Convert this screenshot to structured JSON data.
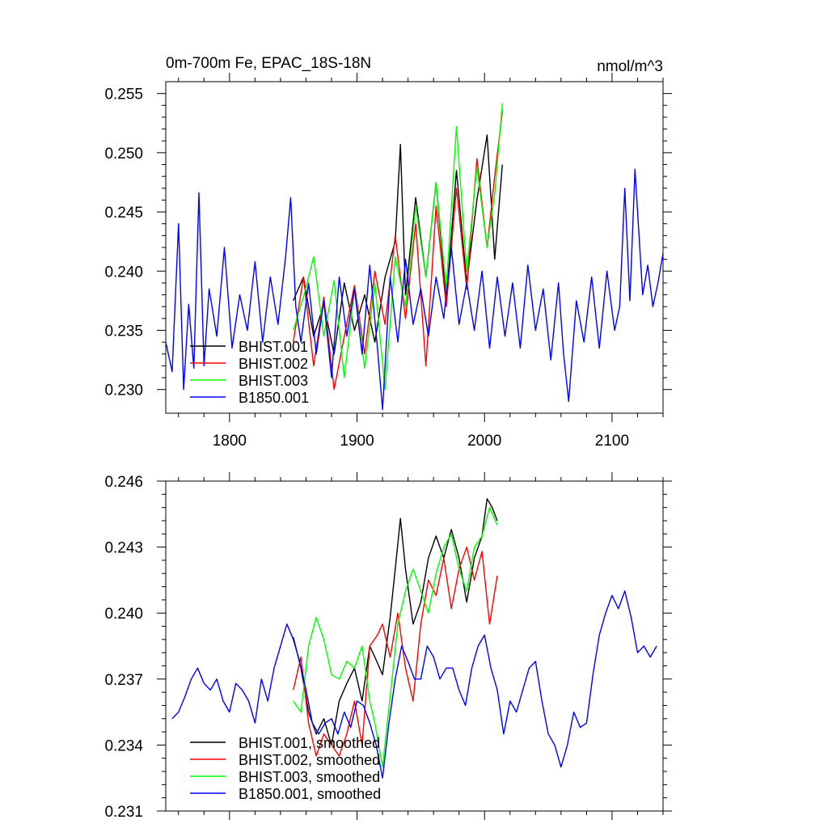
{
  "chart_data": [
    {
      "type": "line",
      "title": "0m-700m Fe, EPAC_18S-18N",
      "units": "nmol/m^3",
      "xlim": [
        1750,
        2140
      ],
      "ylim": [
        0.228,
        0.256
      ],
      "xticks": [
        1800,
        1900,
        2000,
        2100
      ],
      "xtick_labels": [
        "1800",
        "1900",
        "2000",
        "2100"
      ],
      "yticks": [
        0.23,
        0.235,
        0.24,
        0.245,
        0.25,
        0.255
      ],
      "ytick_labels": [
        "0.230",
        "0.235",
        "0.240",
        "0.245",
        "0.250",
        "0.255"
      ],
      "legend_position": "bottom-left",
      "grid": false,
      "series": [
        {
          "name": "BHIST.001",
          "color": "#000000",
          "x": [
            1850,
            1858,
            1866,
            1874,
            1882,
            1890,
            1898,
            1906,
            1914,
            1922,
            1930,
            1934,
            1938,
            1946,
            1954,
            1962,
            1970,
            1978,
            1986,
            1994,
            2002,
            2008,
            2014
          ],
          "values": [
            0.2375,
            0.2395,
            0.2345,
            0.2372,
            0.233,
            0.239,
            0.235,
            0.238,
            0.234,
            0.2395,
            0.2425,
            0.2507,
            0.238,
            0.2462,
            0.2395,
            0.2475,
            0.2375,
            0.2485,
            0.239,
            0.246,
            0.2515,
            0.241,
            0.249
          ]
        },
        {
          "name": "BHIST.002",
          "color": "#ff0000",
          "x": [
            1850,
            1858,
            1866,
            1874,
            1882,
            1890,
            1898,
            1906,
            1914,
            1922,
            1930,
            1938,
            1946,
            1954,
            1962,
            1970,
            1978,
            1986,
            1994,
            2002,
            2008,
            2014
          ],
          "values": [
            0.234,
            0.2395,
            0.232,
            0.2378,
            0.23,
            0.2345,
            0.2388,
            0.233,
            0.24,
            0.2355,
            0.243,
            0.236,
            0.244,
            0.232,
            0.2455,
            0.237,
            0.247,
            0.2385,
            0.2495,
            0.242,
            0.248,
            0.2535
          ]
        },
        {
          "name": "BHIST.003",
          "color": "#00ff00",
          "x": [
            1850,
            1858,
            1866,
            1874,
            1882,
            1890,
            1898,
            1906,
            1914,
            1922,
            1930,
            1938,
            1946,
            1954,
            1962,
            1970,
            1978,
            1986,
            1994,
            2002,
            2008,
            2014
          ],
          "values": [
            0.235,
            0.2378,
            0.2412,
            0.2345,
            0.2392,
            0.231,
            0.2385,
            0.2318,
            0.239,
            0.23,
            0.2412,
            0.237,
            0.2455,
            0.2395,
            0.2475,
            0.2385,
            0.2522,
            0.24,
            0.2488,
            0.242,
            0.2465,
            0.2542
          ]
        },
        {
          "name": "B1850.001",
          "color": "#0000ff",
          "x": [
            1750,
            1755,
            1760,
            1764,
            1768,
            1772,
            1776,
            1780,
            1784,
            1790,
            1796,
            1802,
            1808,
            1814,
            1820,
            1826,
            1832,
            1838,
            1844,
            1848,
            1852,
            1856,
            1862,
            1868,
            1874,
            1880,
            1886,
            1892,
            1898,
            1904,
            1910,
            1916,
            1920,
            1926,
            1932,
            1938,
            1944,
            1950,
            1956,
            1962,
            1968,
            1974,
            1980,
            1986,
            1992,
            1998,
            2004,
            2010,
            2016,
            2022,
            2028,
            2034,
            2040,
            2046,
            2052,
            2058,
            2062,
            2066,
            2072,
            2078,
            2084,
            2090,
            2096,
            2102,
            2106,
            2110,
            2114,
            2118,
            2124,
            2128,
            2132,
            2136,
            2140
          ],
          "values": [
            0.234,
            0.2315,
            0.244,
            0.23,
            0.2372,
            0.2318,
            0.2466,
            0.232,
            0.2385,
            0.2345,
            0.242,
            0.2335,
            0.238,
            0.235,
            0.2408,
            0.234,
            0.2395,
            0.2355,
            0.2412,
            0.2462,
            0.237,
            0.234,
            0.239,
            0.233,
            0.2375,
            0.231,
            0.2395,
            0.2345,
            0.2385,
            0.233,
            0.2405,
            0.2335,
            0.2283,
            0.2395,
            0.234,
            0.241,
            0.2355,
            0.2385,
            0.2345,
            0.2395,
            0.236,
            0.242,
            0.2355,
            0.239,
            0.235,
            0.24,
            0.2335,
            0.2395,
            0.2345,
            0.239,
            0.2335,
            0.2405,
            0.235,
            0.2385,
            0.2325,
            0.239,
            0.233,
            0.229,
            0.2375,
            0.234,
            0.2395,
            0.2335,
            0.24,
            0.235,
            0.237,
            0.247,
            0.2375,
            0.2486,
            0.238,
            0.2405,
            0.237,
            0.239,
            0.2415
          ]
        }
      ]
    },
    {
      "type": "line",
      "xlim": [
        1750,
        2140
      ],
      "ylim": [
        0.231,
        0.246
      ],
      "xticks": [
        1800,
        1900,
        2000,
        2100
      ],
      "yticks": [
        0.231,
        0.234,
        0.237,
        0.24,
        0.243,
        0.246
      ],
      "ytick_labels": [
        "0.231",
        "0.234",
        "0.237",
        "0.240",
        "0.243",
        "0.246"
      ],
      "legend_position": "bottom-left",
      "grid": false,
      "series": [
        {
          "name": "BHIST.001, smoothed",
          "color": "#000000",
          "x": [
            1850,
            1856,
            1862,
            1868,
            1874,
            1880,
            1886,
            1892,
            1898,
            1904,
            1910,
            1914,
            1920,
            1926,
            1930,
            1934,
            1938,
            1944,
            1950,
            1956,
            1962,
            1968,
            1974,
            1980,
            1986,
            1992,
            1998,
            2002,
            2006,
            2010
          ],
          "values": [
            0.2389,
            0.2375,
            0.2355,
            0.2345,
            0.2352,
            0.234,
            0.236,
            0.2368,
            0.2375,
            0.236,
            0.2385,
            0.238,
            0.2372,
            0.2398,
            0.242,
            0.2443,
            0.242,
            0.2395,
            0.2405,
            0.2425,
            0.2435,
            0.2425,
            0.2438,
            0.2425,
            0.2405,
            0.2425,
            0.2435,
            0.2452,
            0.2448,
            0.2442
          ]
        },
        {
          "name": "BHIST.002, smoothed",
          "color": "#ff0000",
          "x": [
            1850,
            1856,
            1862,
            1868,
            1874,
            1880,
            1886,
            1892,
            1898,
            1904,
            1910,
            1916,
            1920,
            1926,
            1932,
            1938,
            1944,
            1950,
            1956,
            1962,
            1968,
            1974,
            1980,
            1986,
            1992,
            1998,
            2004,
            2010
          ],
          "values": [
            0.2365,
            0.238,
            0.235,
            0.2335,
            0.2345,
            0.234,
            0.2335,
            0.2345,
            0.236,
            0.234,
            0.2385,
            0.239,
            0.2395,
            0.238,
            0.24,
            0.2375,
            0.236,
            0.2395,
            0.2415,
            0.2408,
            0.2425,
            0.2402,
            0.242,
            0.243,
            0.2415,
            0.2428,
            0.2395,
            0.2417
          ]
        },
        {
          "name": "BHIST.003, smoothed",
          "color": "#00ff00",
          "x": [
            1850,
            1856,
            1862,
            1868,
            1874,
            1880,
            1886,
            1892,
            1898,
            1904,
            1910,
            1914,
            1920,
            1926,
            1932,
            1938,
            1944,
            1950,
            1956,
            1962,
            1968,
            1974,
            1980,
            1986,
            1992,
            1998,
            2004,
            2010
          ],
          "values": [
            0.236,
            0.2355,
            0.2385,
            0.2398,
            0.2388,
            0.2372,
            0.237,
            0.2378,
            0.2375,
            0.2385,
            0.236,
            0.235,
            0.233,
            0.2362,
            0.2395,
            0.241,
            0.242,
            0.241,
            0.24,
            0.2418,
            0.243,
            0.2436,
            0.242,
            0.241,
            0.243,
            0.2435,
            0.2448,
            0.244
          ]
        },
        {
          "name": "B1850.001, smoothed",
          "color": "#0000ff",
          "x": [
            1755,
            1760,
            1765,
            1770,
            1775,
            1780,
            1785,
            1790,
            1795,
            1800,
            1805,
            1810,
            1815,
            1820,
            1825,
            1830,
            1835,
            1840,
            1845,
            1850,
            1855,
            1860,
            1865,
            1870,
            1875,
            1880,
            1885,
            1890,
            1895,
            1900,
            1905,
            1910,
            1915,
            1920,
            1925,
            1930,
            1935,
            1940,
            1945,
            1950,
            1955,
            1960,
            1965,
            1970,
            1975,
            1980,
            1985,
            1990,
            1995,
            2000,
            2005,
            2010,
            2015,
            2020,
            2025,
            2030,
            2035,
            2040,
            2045,
            2050,
            2055,
            2060,
            2065,
            2070,
            2075,
            2080,
            2085,
            2090,
            2095,
            2100,
            2105,
            2110,
            2115,
            2120,
            2125,
            2130,
            2135
          ],
          "values": [
            0.2352,
            0.2355,
            0.2362,
            0.237,
            0.2375,
            0.2368,
            0.2365,
            0.237,
            0.236,
            0.2355,
            0.2368,
            0.2365,
            0.236,
            0.235,
            0.237,
            0.236,
            0.2375,
            0.2385,
            0.2395,
            0.2388,
            0.2378,
            0.2365,
            0.235,
            0.2345,
            0.235,
            0.2352,
            0.2345,
            0.2355,
            0.2348,
            0.236,
            0.2358,
            0.235,
            0.234,
            0.2325,
            0.235,
            0.237,
            0.2385,
            0.2378,
            0.237,
            0.237,
            0.2385,
            0.238,
            0.237,
            0.2375,
            0.2375,
            0.2365,
            0.2358,
            0.2375,
            0.2385,
            0.239,
            0.2375,
            0.2365,
            0.2345,
            0.236,
            0.2355,
            0.2365,
            0.2375,
            0.2378,
            0.236,
            0.2345,
            0.234,
            0.233,
            0.234,
            0.2355,
            0.2348,
            0.235,
            0.2372,
            0.239,
            0.24,
            0.2408,
            0.2402,
            0.241,
            0.2398,
            0.2382,
            0.2385,
            0.238,
            0.2385
          ]
        }
      ]
    }
  ]
}
